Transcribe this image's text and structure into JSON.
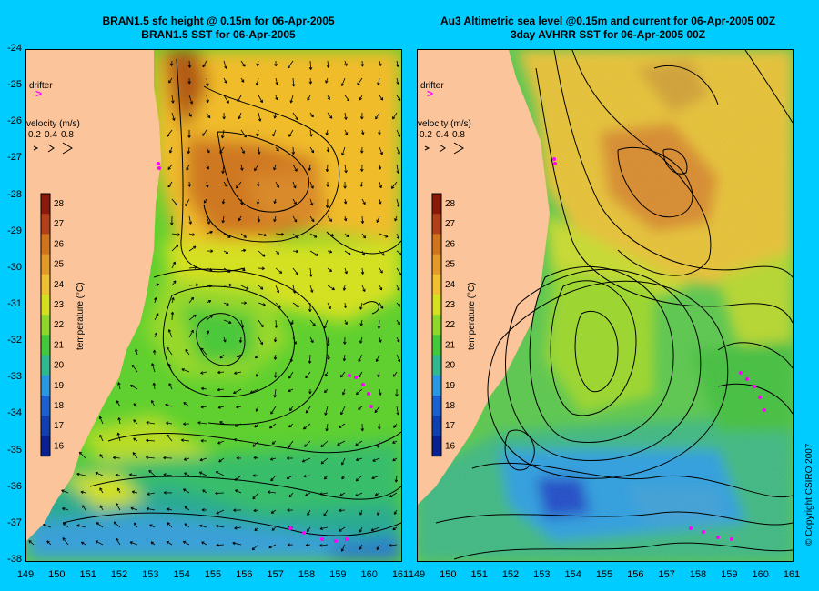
{
  "left_panel": {
    "title_line1": "BRAN1.5 sfc height @ 0.15m for 06-Apr-2005",
    "title_line2": "BRAN1.5 SST for 06-Apr-2005"
  },
  "right_panel": {
    "title_line1": "Au3 Altimetric sea level  @0.15m and current for 06-Apr-2005 00Z",
    "title_line2": "3day AVHRR SST for 06-Apr-2005 00Z"
  },
  "legend": {
    "drifter_label": "drifter",
    "velocity_label": "velocity (m/s)",
    "velocity_values": [
      "0.2",
      "0.4",
      "0.8"
    ],
    "temperature_label": "temperature (°C)",
    "temperature_ticks": [
      "28",
      "27",
      "26",
      "25",
      "24",
      "23",
      "22",
      "21",
      "20",
      "19",
      "18",
      "17",
      "16"
    ]
  },
  "axes": {
    "latitudes": [
      "-24",
      "-25",
      "-26",
      "-27",
      "-28",
      "-29",
      "-30",
      "-31",
      "-32",
      "-33",
      "-34",
      "-35",
      "-36",
      "-37",
      "-38"
    ],
    "left_longitudes": [
      "149",
      "150",
      "151",
      "152",
      "153",
      "154",
      "155",
      "156",
      "157",
      "158",
      "159",
      "160",
      "161"
    ],
    "right_longitudes": [
      "149",
      "150",
      "151",
      "152",
      "153",
      "154",
      "155",
      "156",
      "157",
      "158",
      "159",
      "160",
      "161"
    ]
  },
  "copyright": "© Copyright CSIRO 2007",
  "colors": {
    "background": "#00ccff",
    "land": "#fbc49a",
    "drifter": "#ff00ff",
    "warm": "#d98a2b",
    "cool": "#2aa0e0"
  }
}
